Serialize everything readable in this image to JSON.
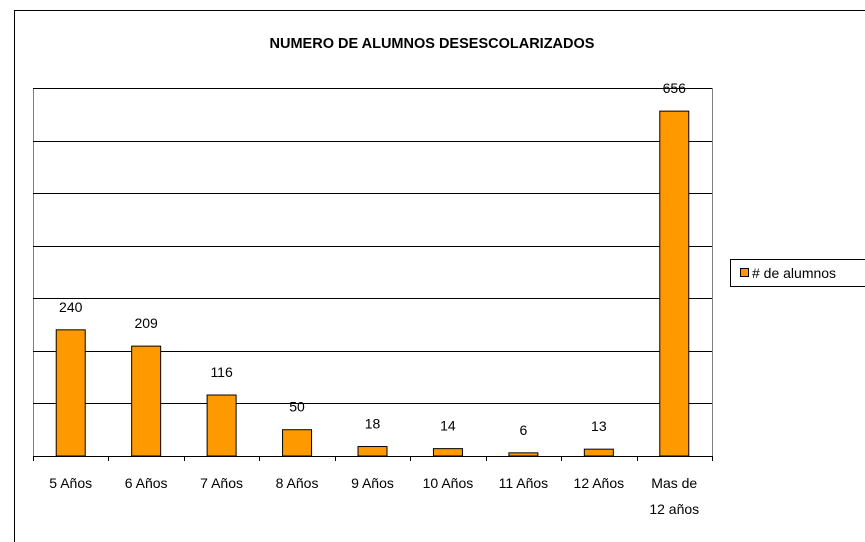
{
  "chart_data": {
    "type": "bar",
    "title": "NUMERO DE ALUMNOS DESESCOLARIZADOS",
    "categories": [
      "5 Años",
      "6 Años",
      "7 Años",
      "8 Años",
      "9 Años",
      "10 Años",
      "11 Años",
      "12 Años",
      "Mas de 12 años"
    ],
    "series": [
      {
        "name": "# de alumnos",
        "color": "#ff9900",
        "values": [
          240,
          209,
          116,
          50,
          18,
          14,
          6,
          13,
          656
        ]
      }
    ],
    "ylim": [
      0,
      700
    ],
    "yticks": [
      0,
      100,
      200,
      300,
      400,
      500,
      600,
      700
    ],
    "grid": true,
    "legend": "right"
  }
}
